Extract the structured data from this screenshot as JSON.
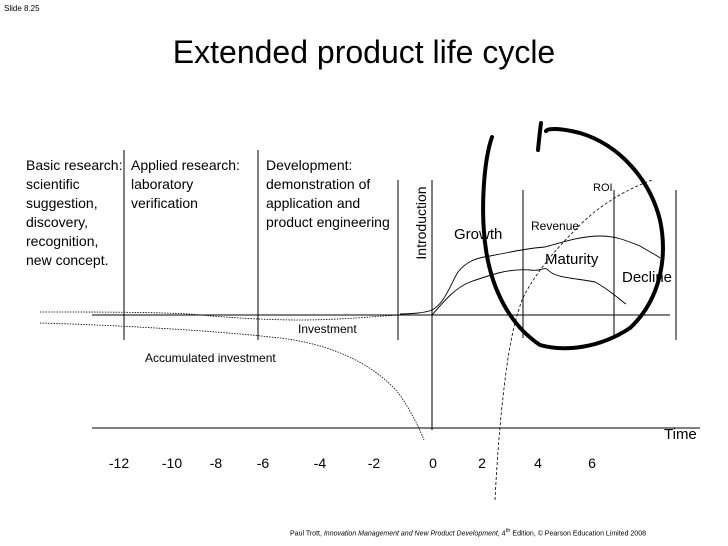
{
  "slide_number": "Slide 8.25",
  "title": "Extended product life cycle",
  "phases": {
    "basic": "Basic research: scientific suggestion, discovery, recognition, new concept.",
    "applied": "Applied research: laboratory verification",
    "development": "Development: demonstration of application and product engineering",
    "introduction": "Introduction"
  },
  "stages": {
    "growth": "Growth",
    "maturity": "Maturity",
    "decline": "Decline"
  },
  "curves": {
    "roi": "ROI",
    "revenue": "Revenue",
    "investment": "Investment",
    "accumulated_investment": "Accumulated investment"
  },
  "axis": {
    "label": "Time",
    "ticks": [
      "-12",
      "-10",
      "-8",
      "-6",
      "-4",
      "-2",
      "0",
      "2",
      "4",
      "6"
    ]
  },
  "footer": {
    "author": "Paul Trott, ",
    "book": "Innovation Management and New Product Development",
    "edition_pre": ", 4",
    "edition_sup": "th",
    "edition_post": " Edition, © Pearson Education Limited 2008"
  },
  "colors": {
    "ink": "#000000",
    "background": "#ffffff"
  }
}
